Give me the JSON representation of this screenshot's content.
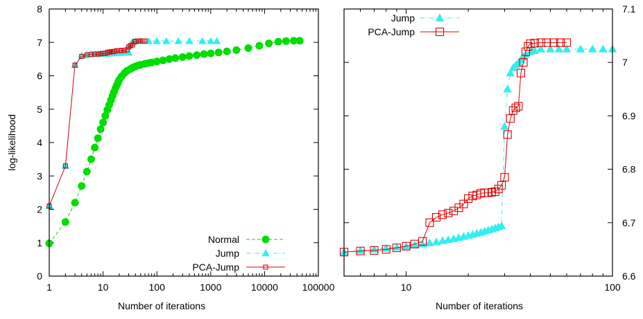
{
  "colors": {
    "normal": "#00dd00",
    "jump": "#33eeee",
    "pca": "#dd0000"
  },
  "chart_data": [
    {
      "type": "line",
      "xscale": "log",
      "xlim": [
        1,
        100000
      ],
      "ylim": [
        0,
        8
      ],
      "xlabel": "Number of iterations",
      "ylabel": "log-likelihood",
      "xticks": [
        1,
        10,
        100,
        1000,
        10000,
        100000
      ],
      "xtick_labels": [
        "1",
        "10",
        "100",
        "1000",
        "10000",
        "100000"
      ],
      "yticks": [
        0,
        1,
        2,
        3,
        4,
        5,
        6,
        7,
        8
      ],
      "ytick_labels": [
        "0",
        "1",
        "2",
        "3",
        "4",
        "5",
        "6",
        "7",
        "8"
      ],
      "legend_position": "bottom-right",
      "series": [
        {
          "name": "Normal",
          "color_key": "normal",
          "marker": "circle",
          "line": "dashed",
          "x": [
            1,
            2,
            3,
            4,
            5,
            6,
            7,
            8,
            9,
            10,
            11,
            12,
            13,
            14,
            15,
            16,
            17,
            18,
            19,
            20,
            22,
            25,
            28,
            32,
            36,
            40,
            45,
            50,
            60,
            70,
            80,
            100,
            130,
            170,
            220,
            300,
            400,
            550,
            750,
            1000,
            1400,
            2000,
            3000,
            5000,
            8000,
            12000,
            18000,
            25000,
            35000,
            45000
          ],
          "y": [
            0.98,
            1.62,
            2.2,
            2.7,
            3.13,
            3.5,
            3.85,
            4.13,
            4.4,
            4.6,
            4.8,
            4.98,
            5.13,
            5.27,
            5.4,
            5.52,
            5.63,
            5.72,
            5.8,
            5.88,
            5.98,
            6.08,
            6.15,
            6.2,
            6.25,
            6.28,
            6.31,
            6.33,
            6.36,
            6.38,
            6.4,
            6.43,
            6.46,
            6.5,
            6.53,
            6.56,
            6.59,
            6.62,
            6.65,
            6.67,
            6.7,
            6.73,
            6.77,
            6.83,
            6.9,
            6.97,
            7.02,
            7.04,
            7.05,
            7.05
          ]
        },
        {
          "name": "Jump",
          "color_key": "jump",
          "marker": "triangle",
          "line": "dash-dot",
          "x": [
            1,
            2,
            3,
            4,
            5,
            6,
            7,
            8,
            9,
            10,
            11,
            12,
            13,
            14,
            15,
            16,
            18,
            20,
            23,
            26,
            30,
            33,
            36,
            40,
            50,
            70,
            100,
            150,
            250,
            400,
            700,
            1000,
            1300
          ],
          "y": [
            2.1,
            3.3,
            6.32,
            6.6,
            6.64,
            6.65,
            6.65,
            6.65,
            6.66,
            6.66,
            6.66,
            6.66,
            6.67,
            6.67,
            6.67,
            6.68,
            6.68,
            6.68,
            6.69,
            6.69,
            6.69,
            6.95,
            7.0,
            7.03,
            7.04,
            7.04,
            7.04,
            7.04,
            7.04,
            7.04,
            7.04,
            7.04,
            7.04
          ]
        },
        {
          "name": "PCA-Jump",
          "color_key": "pca",
          "marker": "square",
          "line": "solid",
          "x": [
            1,
            2,
            3,
            4,
            5,
            6,
            7,
            8,
            9,
            10,
            11,
            12,
            13,
            14,
            15,
            16,
            18,
            20,
            22,
            25,
            28,
            30,
            32,
            35,
            38,
            40,
            45,
            50,
            55,
            60
          ],
          "y": [
            2.1,
            3.3,
            6.32,
            6.58,
            6.62,
            6.64,
            6.65,
            6.65,
            6.66,
            6.67,
            6.67,
            6.7,
            6.71,
            6.72,
            6.72,
            6.73,
            6.75,
            6.75,
            6.76,
            6.76,
            6.78,
            6.86,
            6.9,
            6.92,
            7.02,
            7.03,
            7.04,
            7.04,
            7.04,
            7.04
          ]
        }
      ]
    },
    {
      "type": "line",
      "xscale": "log",
      "xlim": [
        5,
        100
      ],
      "ylim": [
        6.6,
        7.1
      ],
      "xlabel": "Number of iterations",
      "yaxis_side": "right",
      "xticks": [
        10,
        100
      ],
      "xtick_labels": [
        "10",
        "100"
      ],
      "yticks": [
        6.6,
        6.7,
        6.8,
        6.9,
        7.0,
        7.1
      ],
      "ytick_labels": [
        "6.6",
        "6.7",
        "6.8",
        "6.9",
        "7",
        "7.1"
      ],
      "legend_position": "top-left",
      "series": [
        {
          "name": "Jump",
          "color_key": "jump",
          "marker": "triangle",
          "line": "dash-dot",
          "x": [
            5,
            6,
            7,
            8,
            9,
            10,
            11,
            12,
            13,
            14,
            15,
            16,
            17,
            18,
            19,
            20,
            21,
            22,
            23,
            24,
            25,
            26,
            27,
            28,
            29,
            30,
            31,
            32,
            33,
            34,
            35,
            36,
            37,
            38,
            40,
            42,
            45,
            50,
            55,
            60,
            70,
            80,
            90,
            100
          ],
          "y": [
            6.645,
            6.648,
            6.65,
            6.652,
            6.654,
            6.656,
            6.658,
            6.66,
            6.662,
            6.664,
            6.666,
            6.668,
            6.67,
            6.672,
            6.674,
            6.676,
            6.678,
            6.68,
            6.682,
            6.684,
            6.686,
            6.688,
            6.69,
            6.692,
            6.694,
            6.88,
            6.95,
            6.98,
            6.99,
            6.995,
            7.0,
            7.005,
            7.01,
            7.015,
            7.02,
            7.022,
            7.025,
            7.025,
            7.025,
            7.025,
            7.025,
            7.025,
            7.025,
            7.025
          ]
        },
        {
          "name": "PCA-Jump",
          "color_key": "pca",
          "marker": "square",
          "line": "solid",
          "x": [
            5,
            6,
            7,
            8,
            9,
            10,
            11,
            12,
            13,
            14,
            15,
            16,
            17,
            18,
            19,
            20,
            21,
            22,
            23,
            24,
            25,
            26,
            27,
            28,
            29,
            30,
            31,
            32,
            33,
            34,
            35,
            36,
            37,
            38,
            39,
            40,
            42,
            45,
            48,
            52,
            56,
            60
          ],
          "y": [
            6.645,
            6.647,
            6.648,
            6.65,
            6.653,
            6.656,
            6.66,
            6.665,
            6.7,
            6.71,
            6.715,
            6.718,
            6.722,
            6.728,
            6.735,
            6.745,
            6.75,
            6.752,
            6.755,
            6.756,
            6.756,
            6.757,
            6.758,
            6.763,
            6.77,
            6.785,
            6.865,
            6.895,
            6.91,
            6.915,
            6.918,
            6.98,
            7.0,
            7.02,
            7.03,
            7.035,
            7.036,
            7.037,
            7.037,
            7.037,
            7.037,
            7.037
          ]
        }
      ]
    }
  ]
}
